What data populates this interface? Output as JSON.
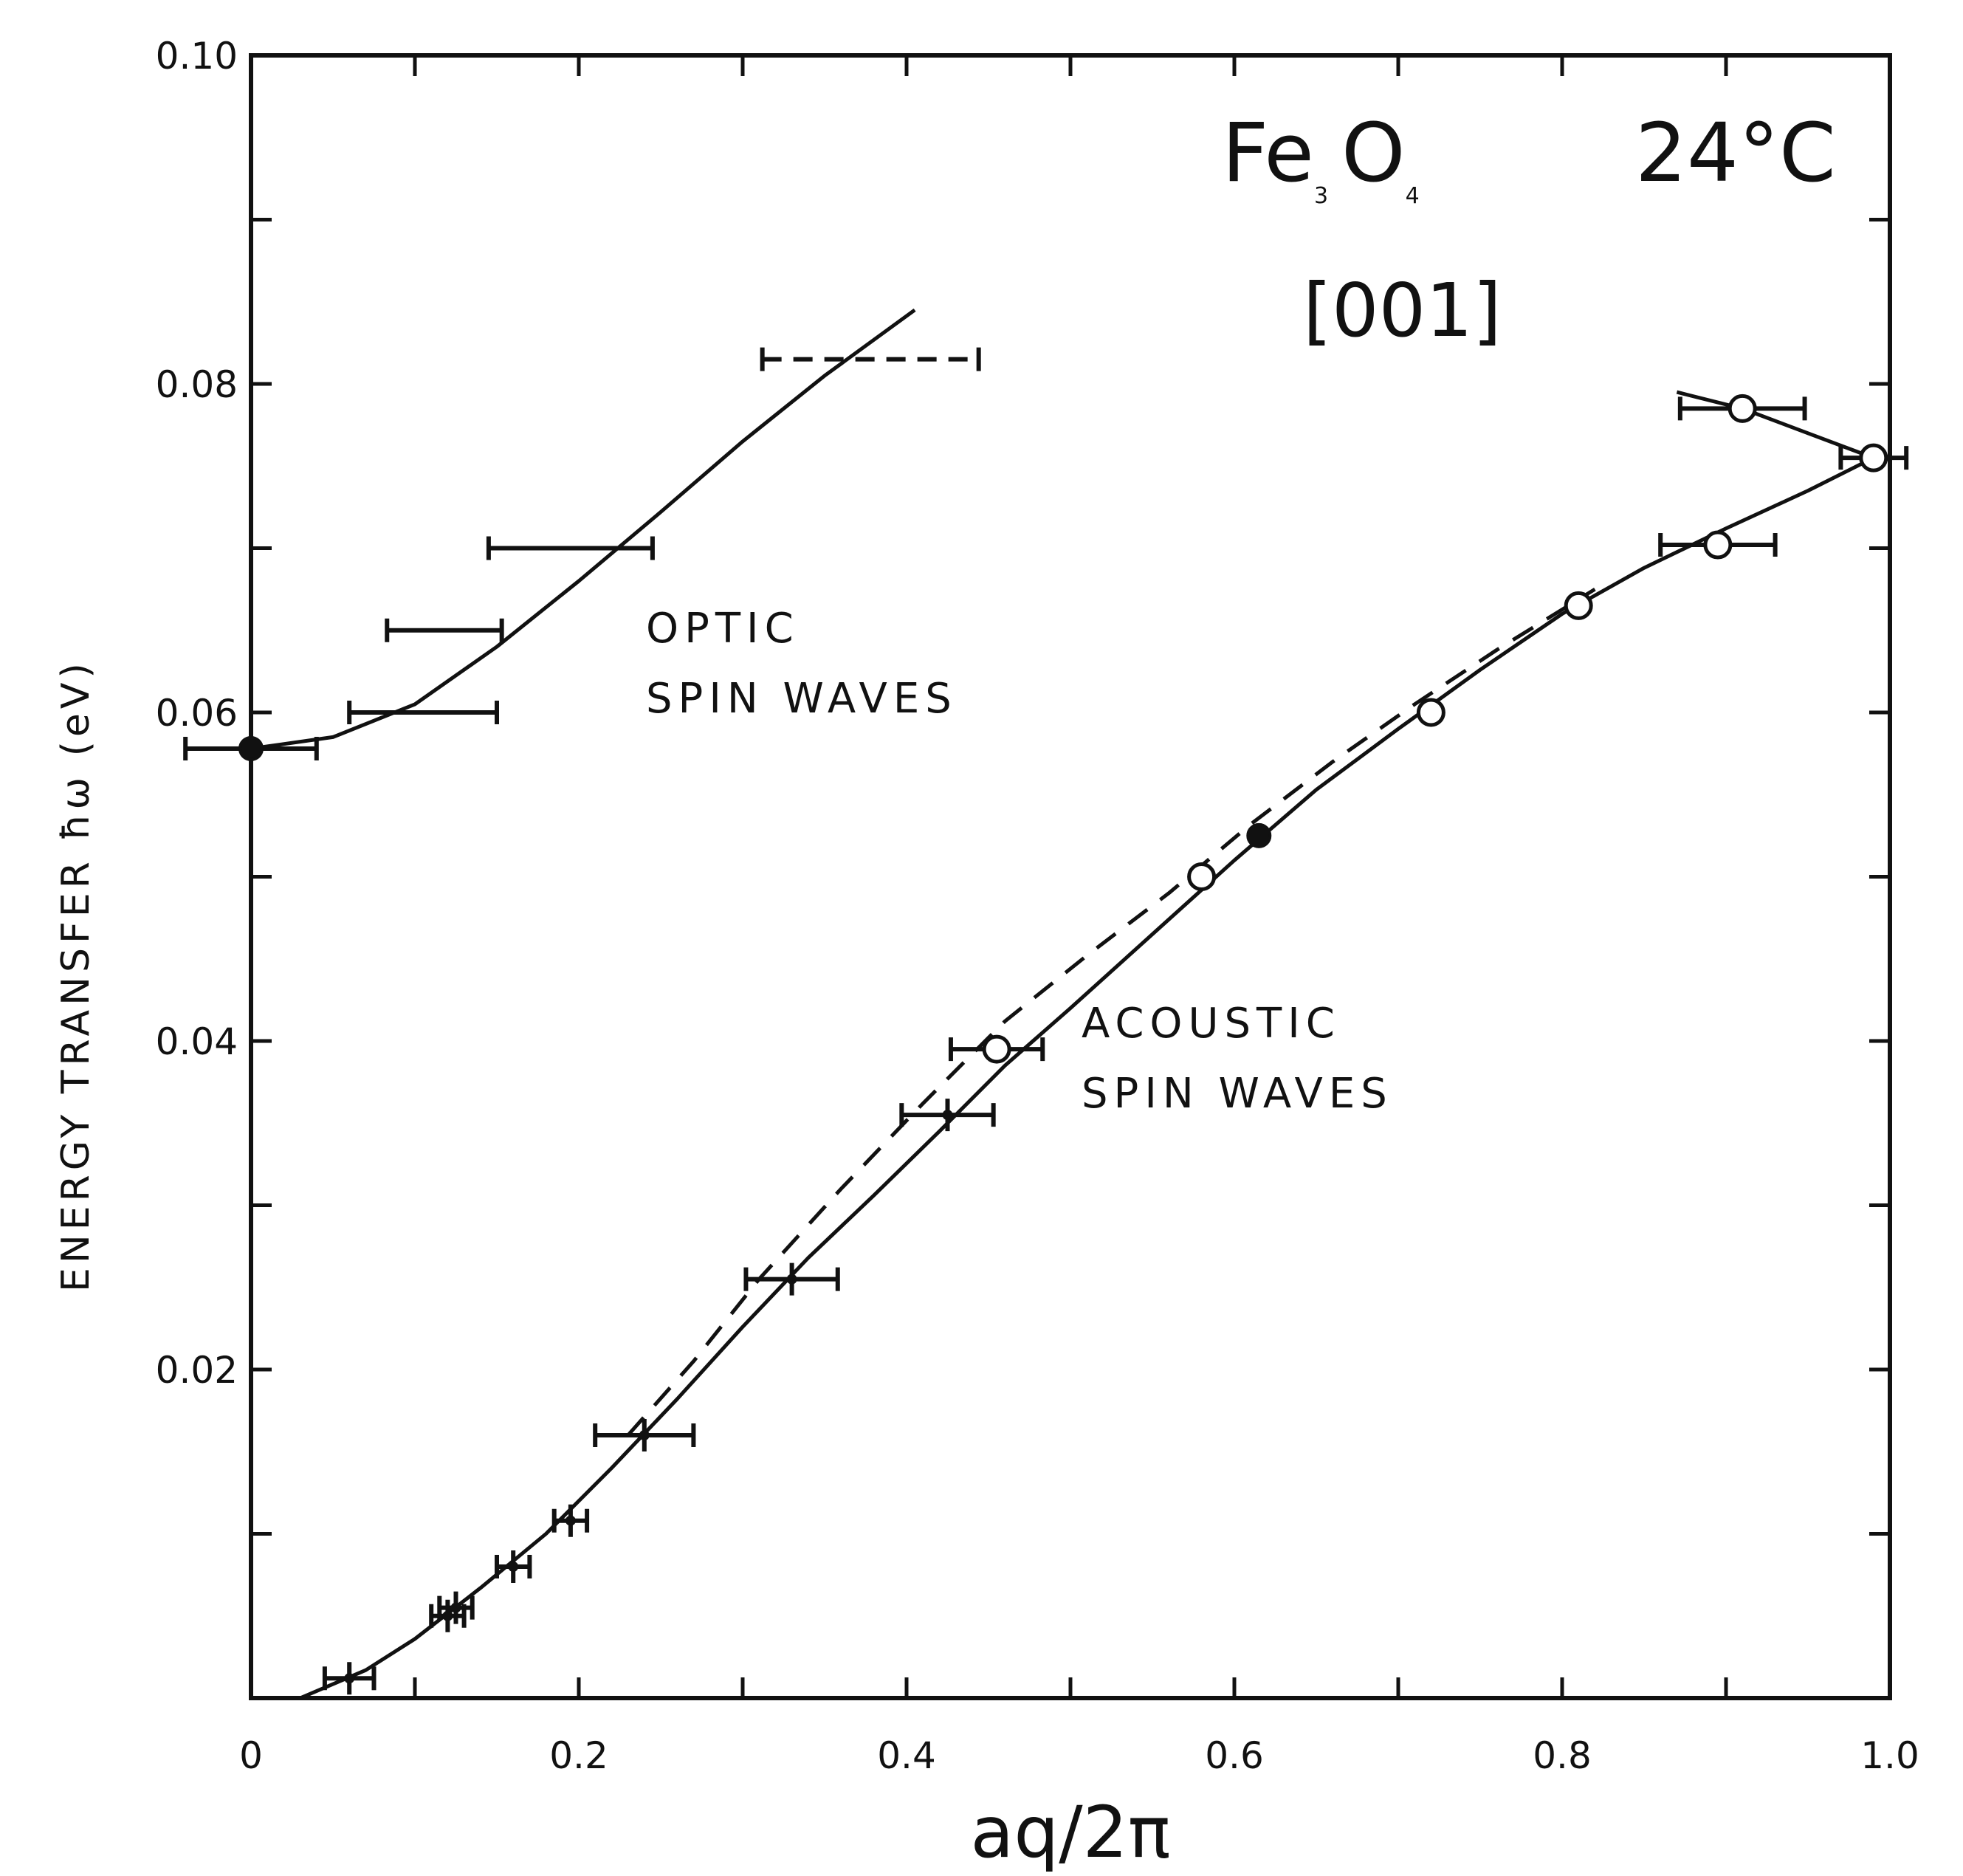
{
  "chart_data": {
    "type": "scatter",
    "title_formula": {
      "el1": "Fe",
      "sub1": "3",
      "el2": "O",
      "sub2": "4"
    },
    "temperature": "24°C",
    "direction": "[001]",
    "xlabel": "aq/2π",
    "ylabel": "ENERGY TRANSFER ħω (eV)",
    "xlim": [
      0,
      1.0
    ],
    "ylim": [
      0,
      0.1
    ],
    "x_ticks": [
      0,
      0.1,
      0.2,
      0.3,
      0.4,
      0.5,
      0.6,
      0.7,
      0.8,
      0.9,
      1.0
    ],
    "x_tick_labels": [
      "0",
      "0.2",
      "0.4",
      "0.6",
      "0.8",
      "1.0"
    ],
    "x_tick_label_values": [
      0,
      0.2,
      0.4,
      0.6,
      0.8,
      1.0
    ],
    "y_ticks": [
      0,
      0.01,
      0.02,
      0.03,
      0.04,
      0.05,
      0.06,
      0.07,
      0.08,
      0.09,
      0.1
    ],
    "y_tick_labels": [
      "0.02",
      "0.04",
      "0.06",
      "0.08",
      "0.10"
    ],
    "y_tick_label_values": [
      0.02,
      0.04,
      0.06,
      0.08,
      0.1
    ],
    "annotations": {
      "optic": [
        "OPTIC",
        "SPIN WAVES"
      ],
      "acoustic": [
        "ACOUSTIC",
        "SPIN WAVES"
      ]
    },
    "series": [
      {
        "name": "optic-data",
        "points": [
          {
            "x": 0.0,
            "y": 0.0578,
            "xerr": 0.04,
            "marker": "filled"
          },
          {
            "x": 0.105,
            "y": 0.06,
            "xerr": 0.045,
            "marker": "none"
          },
          {
            "x": 0.118,
            "y": 0.065,
            "xerr": 0.035,
            "marker": "none"
          },
          {
            "x": 0.195,
            "y": 0.07,
            "xerr": 0.05,
            "marker": "none"
          },
          {
            "x": 0.378,
            "y": 0.0815,
            "xerr": 0.066,
            "marker": "none",
            "dashed": true
          }
        ]
      },
      {
        "name": "acoustic-data",
        "points": [
          {
            "x": 0.06,
            "y": 0.0012,
            "xerr": 0.015,
            "marker": "cross"
          },
          {
            "x": 0.12,
            "y": 0.005,
            "xerr": 0.01,
            "marker": "cross"
          },
          {
            "x": 0.125,
            "y": 0.0055,
            "xerr": 0.01,
            "marker": "cross"
          },
          {
            "x": 0.16,
            "y": 0.008,
            "xerr": 0.01,
            "marker": "cross"
          },
          {
            "x": 0.195,
            "y": 0.0108,
            "xerr": 0.01,
            "marker": "cross"
          },
          {
            "x": 0.24,
            "y": 0.016,
            "xerr": 0.03,
            "marker": "cross"
          },
          {
            "x": 0.33,
            "y": 0.0255,
            "xerr": 0.028,
            "marker": "cross"
          },
          {
            "x": 0.425,
            "y": 0.0355,
            "xerr": 0.028,
            "marker": "cross"
          },
          {
            "x": 0.455,
            "y": 0.0395,
            "xerr": 0.028,
            "marker": "open"
          },
          {
            "x": 0.58,
            "y": 0.05,
            "xerr": 0.0,
            "marker": "open"
          },
          {
            "x": 0.615,
            "y": 0.0525,
            "xerr": 0.0,
            "marker": "filled"
          },
          {
            "x": 0.72,
            "y": 0.06,
            "xerr": 0.0,
            "marker": "open"
          },
          {
            "x": 0.81,
            "y": 0.0665,
            "xerr": 0.0,
            "marker": "open"
          },
          {
            "x": 0.895,
            "y": 0.0702,
            "xerr": 0.035,
            "marker": "open"
          },
          {
            "x": 0.91,
            "y": 0.0785,
            "xerr": 0.038,
            "marker": "open"
          },
          {
            "x": 0.99,
            "y": 0.0755,
            "xerr": 0.02,
            "marker": "open"
          }
        ]
      }
    ],
    "curves": {
      "optic": [
        [
          0.0,
          0.0578
        ],
        [
          0.05,
          0.0585
        ],
        [
          0.1,
          0.0605
        ],
        [
          0.15,
          0.064
        ],
        [
          0.2,
          0.068
        ],
        [
          0.25,
          0.0722
        ],
        [
          0.3,
          0.0765
        ],
        [
          0.35,
          0.0805
        ],
        [
          0.405,
          0.0845
        ]
      ],
      "acoustic_solid": [
        [
          0.03,
          0.0
        ],
        [
          0.07,
          0.0017
        ],
        [
          0.1,
          0.0036
        ],
        [
          0.14,
          0.0067
        ],
        [
          0.18,
          0.01
        ],
        [
          0.22,
          0.014
        ],
        [
          0.26,
          0.0182
        ],
        [
          0.3,
          0.0226
        ],
        [
          0.34,
          0.0268
        ],
        [
          0.38,
          0.0306
        ],
        [
          0.42,
          0.0345
        ],
        [
          0.46,
          0.0385
        ],
        [
          0.5,
          0.042
        ],
        [
          0.55,
          0.0465
        ],
        [
          0.6,
          0.051
        ],
        [
          0.65,
          0.0553
        ],
        [
          0.7,
          0.059
        ],
        [
          0.75,
          0.0626
        ],
        [
          0.8,
          0.066
        ],
        [
          0.85,
          0.0688
        ],
        [
          0.9,
          0.0712
        ],
        [
          0.95,
          0.0735
        ],
        [
          0.99,
          0.0755
        ]
      ],
      "acoustic_dashed": [
        [
          0.23,
          0.016
        ],
        [
          0.27,
          0.0205
        ],
        [
          0.31,
          0.0255
        ],
        [
          0.36,
          0.031
        ],
        [
          0.41,
          0.0362
        ],
        [
          0.46,
          0.0412
        ],
        [
          0.51,
          0.0452
        ],
        [
          0.56,
          0.049
        ],
        [
          0.61,
          0.0532
        ],
        [
          0.66,
          0.057
        ],
        [
          0.71,
          0.0605
        ],
        [
          0.76,
          0.0638
        ],
        [
          0.82,
          0.0675
        ]
      ],
      "upper_branch": [
        [
          0.87,
          0.0795
        ],
        [
          0.91,
          0.0785
        ],
        [
          0.95,
          0.077
        ],
        [
          0.99,
          0.0755
        ]
      ]
    }
  }
}
